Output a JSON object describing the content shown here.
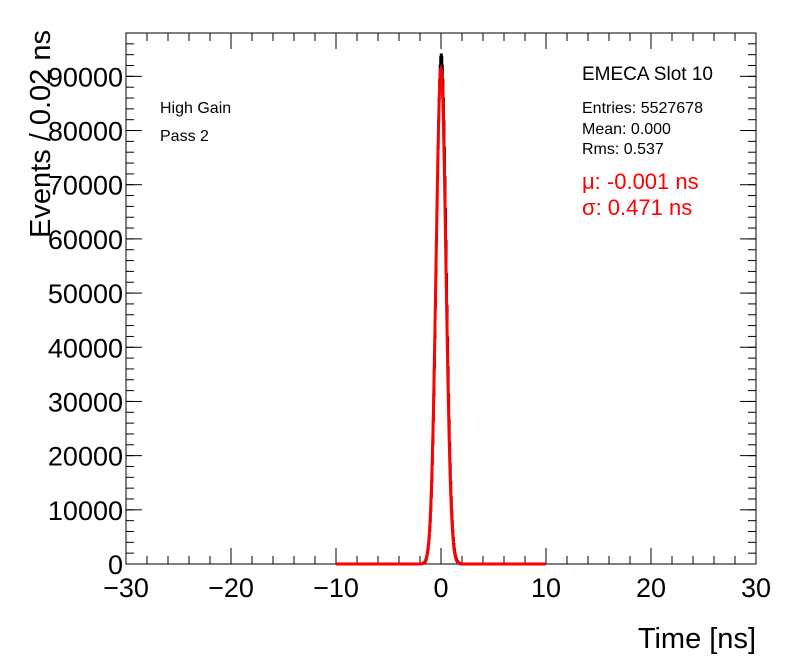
{
  "chart_data": {
    "type": "histogram",
    "xlabel": "Time [ns]",
    "ylabel": "Events / 0.02 ns",
    "xlim": [
      -30,
      30
    ],
    "ylim": [
      0,
      98000
    ],
    "x_ticks": [
      -30,
      -20,
      -10,
      0,
      10,
      20,
      30
    ],
    "y_ticks": [
      0,
      10000,
      20000,
      30000,
      40000,
      50000,
      60000,
      70000,
      80000,
      90000
    ],
    "bin_width": 0.02,
    "grid": false,
    "legend": "none",
    "histogram": {
      "shape": "gaussian",
      "mean": 0.0,
      "sigma": 0.471,
      "peak": 94000,
      "tail_extent": 2.0,
      "color": "#000000"
    },
    "fit": {
      "shape": "gaussian",
      "mean": -0.001,
      "sigma": 0.471,
      "peak": 91500,
      "range": [
        -10,
        10
      ],
      "color": "#ff0000"
    },
    "annotations": {
      "gain": "High Gain",
      "pass": "Pass 2",
      "title": "EMECA Slot 10",
      "entries": "Entries: 5527678",
      "mean": "Mean: 0.000",
      "rms": "Rms: 0.537",
      "fit_mu": "μ: -0.001 ns",
      "fit_sigma": "σ: 0.471 ns",
      "fit_color": "#ff0000"
    }
  }
}
